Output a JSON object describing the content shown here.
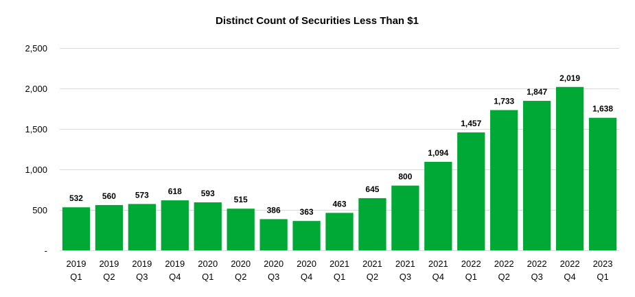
{
  "chart_data": {
    "type": "bar",
    "title": "Distinct Count of Securities Less Than $1",
    "xlabel": "",
    "ylabel": "",
    "ylim": [
      0,
      2500
    ],
    "y_ticks": [
      0,
      500,
      1000,
      1500,
      2000,
      2500
    ],
    "y_tick_labels": [
      "-",
      "500",
      "1,000",
      "1,500",
      "2,000",
      "2,500"
    ],
    "grid": true,
    "legend": "none",
    "bar_color": "#00a835",
    "categories": [
      {
        "year": "2019",
        "quarter": "Q1"
      },
      {
        "year": "2019",
        "quarter": "Q2"
      },
      {
        "year": "2019",
        "quarter": "Q3"
      },
      {
        "year": "2019",
        "quarter": "Q4"
      },
      {
        "year": "2020",
        "quarter": "Q1"
      },
      {
        "year": "2020",
        "quarter": "Q2"
      },
      {
        "year": "2020",
        "quarter": "Q3"
      },
      {
        "year": "2020",
        "quarter": "Q4"
      },
      {
        "year": "2021",
        "quarter": "Q1"
      },
      {
        "year": "2021",
        "quarter": "Q2"
      },
      {
        "year": "2021",
        "quarter": "Q3"
      },
      {
        "year": "2021",
        "quarter": "Q4"
      },
      {
        "year": "2022",
        "quarter": "Q1"
      },
      {
        "year": "2022",
        "quarter": "Q2"
      },
      {
        "year": "2022",
        "quarter": "Q3"
      },
      {
        "year": "2022",
        "quarter": "Q4"
      },
      {
        "year": "2023",
        "quarter": "Q1"
      }
    ],
    "values": [
      532,
      560,
      573,
      618,
      593,
      515,
      386,
      363,
      463,
      645,
      800,
      1094,
      1457,
      1733,
      1847,
      2019,
      1638
    ],
    "value_labels": [
      "532",
      "560",
      "573",
      "618",
      "593",
      "515",
      "386",
      "363",
      "463",
      "645",
      "800",
      "1,094",
      "1,457",
      "1,733",
      "1,847",
      "2,019",
      "1,638"
    ]
  }
}
